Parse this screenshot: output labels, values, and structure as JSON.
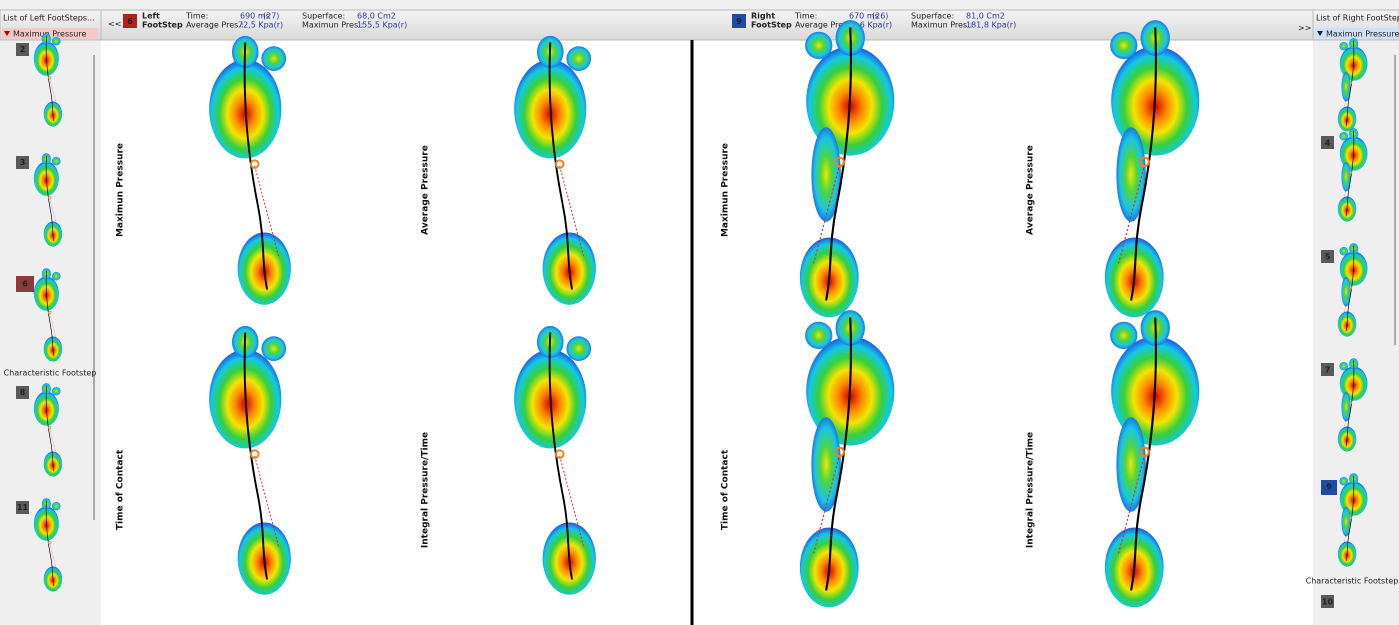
{
  "left_list": {
    "title": "List of Left FootSteps...",
    "selector": "Maximun Pressure",
    "items": [
      "2",
      "3",
      "6",
      "8",
      "11"
    ],
    "characteristic": "Characteristic Footstep"
  },
  "left_header": {
    "nav": "<<",
    "number": "6",
    "side": "Left",
    "kind": "FootStep",
    "time_label": "Time:",
    "time": "690 ms",
    "count": "(27)",
    "surface_label": "Superface:",
    "surface": "68,0 Cm2",
    "avg_label": "Average Pres.:",
    "avg": "72,5 Kpa(r)",
    "max_label": "Maximun Pres.:",
    "max": "155,5 Kpa(r)"
  },
  "right_header": {
    "number": "9",
    "side": "Right",
    "kind": "FootStep",
    "time_label": "Time:",
    "time": "670 ms",
    "count": "(26)",
    "surface_label": "Superface:",
    "surface": "81,0 Cm2",
    "avg_label": "Average Pres.:",
    "avg": "80,6 Kpa(r)",
    "max_label": "Maximun Pres.:",
    "max": "181,8 Kpa(r)",
    "nav": ">>"
  },
  "left_panels": [
    "Maximun Pressure",
    "Average Pressure",
    "Time of Contact",
    "Integral Pressure/Time"
  ],
  "right_panels": [
    "Maximun Pressure",
    "Average Pressure",
    "Time of Contact",
    "Integral Pressure/Time"
  ],
  "right_list": {
    "title": "List of Right FootSteps",
    "selector": "Maximun Pressure",
    "items": [
      "4",
      "5",
      "7",
      "9",
      "10"
    ],
    "characteristic": "Characteristic Footstep"
  }
}
